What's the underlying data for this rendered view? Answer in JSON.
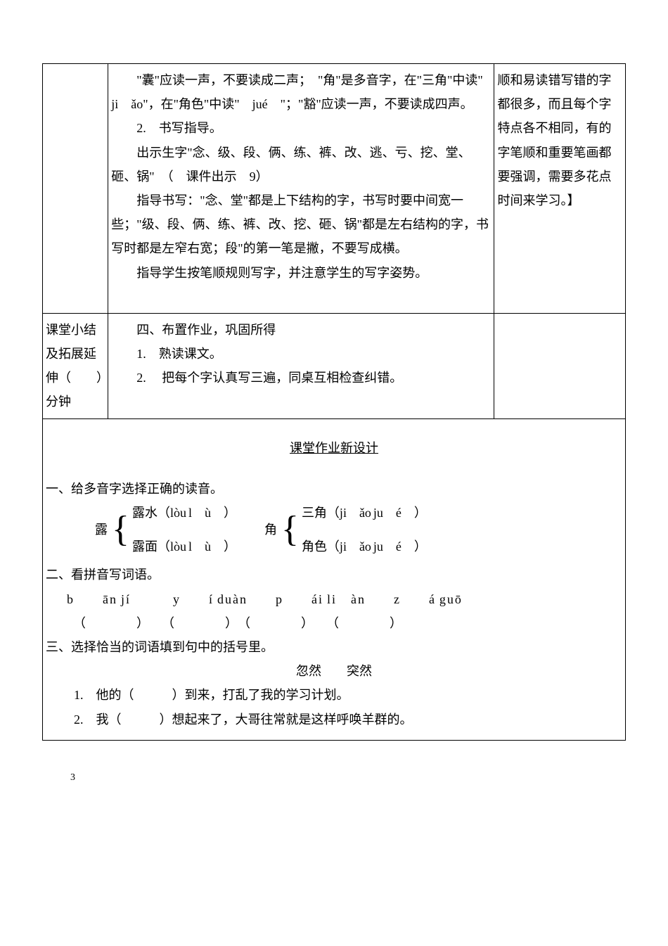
{
  "row1": {
    "mid_p1": "　　\"囊\"应读一声，不要读成二声；　\"角\"是多音字，在\"三角\"中读\"　ji　ǎo\"，在\"角色\"中读\"　jué　\"；\"豁\"应读一声，不要读成四声。",
    "mid_p2": "　　2.　书写指导。",
    "mid_p3": "　　出示生字\"念、级、段、俩、练、裤、改、逃、亏、挖、堂、砸、锅\"　（　课件出示　9）",
    "mid_p4": "　　指导书写：\"念、堂\"都是上下结构的字，书写时要中间宽一些；\"级、段、俩、练、裤、改、挖、砸、锅\"都是左右结构的字，书写时都是左窄右宽；段\"的第一笔是撇，不要写成横。",
    "mid_p5": "　　指导学生按笔顺规则写字，并注意学生的写字姿势。",
    "right": "顺和易读错写错的字都很多，而且每个字特点各不相同，有的字笔顺和重要笔画都要强调，需要多花点时间来学习。】"
  },
  "row2": {
    "left_l1": "课堂小结",
    "left_l2": "及拓展延",
    "left_l3": "伸（　　）",
    "left_l4": "分钟",
    "mid_h": "　　四、布置作业，巩固所得",
    "mid_1": "　　1.　熟读课文。",
    "mid_2": "　　2.　 把每个字认真写三遍，同桌互相检查纠错。"
  },
  "hw": {
    "title": "课堂作业新设计",
    "s1_h": "一、给多音字选择正确的读音。",
    "b1_label": "露",
    "b1_a": "露水（lòu l　ù　）",
    "b1_b": "露面（lòu l　ù　）",
    "b2_label": "角",
    "b2_a": "三角（ji　ǎo ju　é　）",
    "b2_b": "角色（ji　ǎo ju　é　）",
    "s2_h": "二、看拼音写词语。",
    "pinyin": "b　　ān jí　　　y　　í duàn　　p　　ái li　àn　　z　　á guō",
    "paren": "　（　　　　）　　（　　　　）　（　　　　）　　（　　　　）",
    "s3_h": "三、选择恰当的词语填到句中的括号里。",
    "s3_words": "忽然　　突然",
    "s3_q1": "1.　他的（　　　）到来，打乱了我的学习计划。",
    "s3_q2": "2.　我（　　　）想起来了，大哥往常就是这样呼唤羊群的。"
  },
  "page_num": "3"
}
